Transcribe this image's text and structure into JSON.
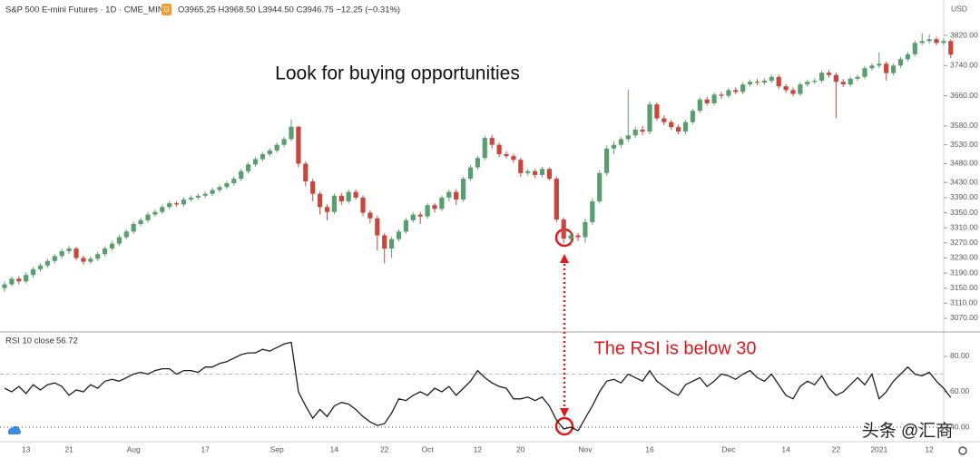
{
  "chart_data": [
    {
      "type": "candlestick",
      "title": "S&P 500 E-mini Futures · 1D · CME_MINI",
      "interval_badge": "D",
      "ohlc_legend": "O3965.25 H3968.50 L3944.50 C3946.75 −12.25 (−0.31%)",
      "currency": "USD",
      "annotation": "Look for buying opportunities",
      "up_color": "#5a9e6f",
      "down_color": "#c8473d",
      "ylim": [
        3036.3,
        3913.8
      ],
      "yticks": [
        {
          "value": 3820,
          "label": "3820.00"
        },
        {
          "value": 3740,
          "label": "3740.00"
        },
        {
          "value": 3660,
          "label": "3660.00"
        },
        {
          "value": 3580,
          "label": "3580.00"
        },
        {
          "value": 3530,
          "label": "3530.00"
        },
        {
          "value": 3480,
          "label": "3480.00"
        },
        {
          "value": 3430,
          "label": "3430.00"
        },
        {
          "value": 3390,
          "label": "3390.00"
        },
        {
          "value": 3350,
          "label": "3350.00"
        },
        {
          "value": 3310,
          "label": "3310.00"
        },
        {
          "value": 3270,
          "label": "3270.00"
        },
        {
          "value": 3230,
          "label": "3230.00"
        },
        {
          "value": 3190,
          "label": "3190.00"
        },
        {
          "value": 3150,
          "label": "3150.00"
        },
        {
          "value": 3110,
          "label": "3110.00"
        },
        {
          "value": 3070,
          "label": "3070.00"
        }
      ],
      "candles": [
        [
          3150,
          3168,
          3140,
          3160
        ],
        [
          3160,
          3181,
          3154,
          3175
        ],
        [
          3175,
          3182,
          3160,
          3168
        ],
        [
          3168,
          3192,
          3162,
          3185
        ],
        [
          3185,
          3206,
          3178,
          3200
        ],
        [
          3200,
          3216,
          3194,
          3210
        ],
        [
          3210,
          3228,
          3204,
          3222
        ],
        [
          3222,
          3241,
          3215,
          3235
        ],
        [
          3235,
          3254,
          3229,
          3248
        ],
        [
          3248,
          3262,
          3240,
          3255
        ],
        [
          3255,
          3260,
          3224,
          3230
        ],
        [
          3230,
          3236,
          3212,
          3220
        ],
        [
          3220,
          3234,
          3214,
          3228
        ],
        [
          3228,
          3246,
          3222,
          3240
        ],
        [
          3240,
          3261,
          3234,
          3255
        ],
        [
          3255,
          3274,
          3249,
          3268
        ],
        [
          3268,
          3291,
          3262,
          3285
        ],
        [
          3285,
          3306,
          3279,
          3300
        ],
        [
          3300,
          3326,
          3294,
          3320
        ],
        [
          3320,
          3336,
          3314,
          3330
        ],
        [
          3330,
          3351,
          3324,
          3345
        ],
        [
          3345,
          3358,
          3339,
          3352
        ],
        [
          3352,
          3371,
          3346,
          3365
        ],
        [
          3365,
          3381,
          3359,
          3375
        ],
        [
          3375,
          3380,
          3366,
          3372
        ],
        [
          3372,
          3391,
          3366,
          3385
        ],
        [
          3385,
          3396,
          3379,
          3390
        ],
        [
          3390,
          3401,
          3384,
          3395
        ],
        [
          3395,
          3406,
          3389,
          3400
        ],
        [
          3400,
          3416,
          3394,
          3410
        ],
        [
          3410,
          3424,
          3404,
          3418
        ],
        [
          3418,
          3434,
          3412,
          3428
        ],
        [
          3428,
          3446,
          3422,
          3440
        ],
        [
          3440,
          3466,
          3434,
          3460
        ],
        [
          3460,
          3484,
          3454,
          3478
        ],
        [
          3478,
          3498,
          3472,
          3492
        ],
        [
          3492,
          3511,
          3486,
          3505
        ],
        [
          3505,
          3521,
          3499,
          3515
        ],
        [
          3515,
          3536,
          3509,
          3530
        ],
        [
          3530,
          3551,
          3524,
          3545
        ],
        [
          3545,
          3597,
          3540,
          3578
        ],
        [
          3578,
          3580,
          3470,
          3480
        ],
        [
          3480,
          3486,
          3420,
          3433
        ],
        [
          3433,
          3440,
          3380,
          3400
        ],
        [
          3400,
          3406,
          3345,
          3365
        ],
        [
          3365,
          3372,
          3330,
          3352
        ],
        [
          3352,
          3401,
          3346,
          3395
        ],
        [
          3395,
          3402,
          3370,
          3380
        ],
        [
          3380,
          3411,
          3374,
          3405
        ],
        [
          3405,
          3412,
          3384,
          3390
        ],
        [
          3390,
          3396,
          3340,
          3350
        ],
        [
          3350,
          3356,
          3322,
          3335
        ],
        [
          3335,
          3342,
          3250,
          3290
        ],
        [
          3290,
          3296,
          3215,
          3255
        ],
        [
          3255,
          3286,
          3230,
          3280
        ],
        [
          3280,
          3306,
          3274,
          3300
        ],
        [
          3300,
          3336,
          3294,
          3330
        ],
        [
          3330,
          3351,
          3324,
          3345
        ],
        [
          3345,
          3352,
          3320,
          3340
        ],
        [
          3340,
          3376,
          3334,
          3370
        ],
        [
          3370,
          3376,
          3350,
          3360
        ],
        [
          3360,
          3396,
          3354,
          3390
        ],
        [
          3390,
          3411,
          3380,
          3405
        ],
        [
          3405,
          3412,
          3370,
          3385
        ],
        [
          3385,
          3446,
          3379,
          3440
        ],
        [
          3440,
          3476,
          3434,
          3470
        ],
        [
          3470,
          3501,
          3464,
          3495
        ],
        [
          3495,
          3554,
          3489,
          3548
        ],
        [
          3548,
          3556,
          3520,
          3530
        ],
        [
          3530,
          3536,
          3498,
          3505
        ],
        [
          3505,
          3512,
          3494,
          3500
        ],
        [
          3500,
          3506,
          3482,
          3490
        ],
        [
          3490,
          3496,
          3445,
          3455
        ],
        [
          3455,
          3466,
          3448,
          3460
        ],
        [
          3460,
          3466,
          3442,
          3450
        ],
        [
          3450,
          3472,
          3444,
          3466
        ],
        [
          3466,
          3470,
          3435,
          3440
        ],
        [
          3440,
          3446,
          3325,
          3332
        ],
        [
          3332,
          3338,
          3270,
          3281
        ],
        [
          3281,
          3300,
          3262,
          3290
        ],
        [
          3290,
          3296,
          3275,
          3285
        ],
        [
          3285,
          3335,
          3270,
          3325
        ],
        [
          3325,
          3388,
          3318,
          3380
        ],
        [
          3380,
          3462,
          3374,
          3455
        ],
        [
          3455,
          3528,
          3448,
          3520
        ],
        [
          3520,
          3540,
          3505,
          3530
        ],
        [
          3530,
          3551,
          3522,
          3545
        ],
        [
          3545,
          3676,
          3538,
          3555
        ],
        [
          3555,
          3578,
          3548,
          3570
        ],
        [
          3570,
          3580,
          3556,
          3565
        ],
        [
          3565,
          3645,
          3558,
          3637
        ],
        [
          3637,
          3642,
          3594,
          3600
        ],
        [
          3600,
          3608,
          3582,
          3590
        ],
        [
          3590,
          3596,
          3570,
          3577
        ],
        [
          3577,
          3584,
          3558,
          3565
        ],
        [
          3565,
          3596,
          3558,
          3590
        ],
        [
          3590,
          3626,
          3584,
          3620
        ],
        [
          3620,
          3656,
          3614,
          3650
        ],
        [
          3650,
          3657,
          3634,
          3640
        ],
        [
          3640,
          3669,
          3634,
          3663
        ],
        [
          3663,
          3670,
          3652,
          3660
        ],
        [
          3660,
          3681,
          3654,
          3675
        ],
        [
          3675,
          3682,
          3664,
          3670
        ],
        [
          3670,
          3696,
          3664,
          3690
        ],
        [
          3690,
          3703,
          3684,
          3697
        ],
        [
          3697,
          3704,
          3688,
          3695
        ],
        [
          3695,
          3706,
          3689,
          3700
        ],
        [
          3700,
          3716,
          3694,
          3710
        ],
        [
          3710,
          3716,
          3678,
          3685
        ],
        [
          3685,
          3691,
          3668,
          3675
        ],
        [
          3675,
          3682,
          3658,
          3665
        ],
        [
          3665,
          3696,
          3659,
          3690
        ],
        [
          3690,
          3703,
          3684,
          3697
        ],
        [
          3697,
          3706,
          3691,
          3700
        ],
        [
          3700,
          3727,
          3694,
          3721
        ],
        [
          3721,
          3728,
          3708,
          3715
        ],
        [
          3715,
          3722,
          3600,
          3697
        ],
        [
          3697,
          3704,
          3683,
          3690
        ],
        [
          3690,
          3711,
          3684,
          3705
        ],
        [
          3705,
          3716,
          3699,
          3710
        ],
        [
          3710,
          3739,
          3704,
          3733
        ],
        [
          3733,
          3746,
          3727,
          3740
        ],
        [
          3740,
          3775,
          3734,
          3745
        ],
        [
          3745,
          3751,
          3700,
          3720
        ],
        [
          3720,
          3746,
          3714,
          3740
        ],
        [
          3740,
          3763,
          3734,
          3757
        ],
        [
          3757,
          3776,
          3751,
          3770
        ],
        [
          3770,
          3806,
          3764,
          3800
        ],
        [
          3800,
          3826,
          3794,
          3805
        ],
        [
          3805,
          3823,
          3798,
          3810
        ],
        [
          3810,
          3816,
          3794,
          3800
        ],
        [
          3800,
          3812,
          3794,
          3805
        ],
        [
          3805,
          3810,
          3760,
          3769
        ]
      ]
    },
    {
      "type": "line",
      "title": "RSI 10 close",
      "color": "#1e1e1e",
      "annotation": "The RSI is below 30",
      "watermark": "头条 @汇商",
      "ylim": [
        31.8,
        92.8
      ],
      "yticks": [
        {
          "value": 80,
          "label": "80.00"
        },
        {
          "value": 60,
          "label": "60.00"
        },
        {
          "value": 40,
          "label": "40.00"
        }
      ],
      "levels": [
        70,
        40
      ],
      "categories": [
        null,
        null,
        null,
        "13",
        null,
        null,
        null,
        null,
        null,
        "21",
        null,
        null,
        null,
        null,
        null,
        null,
        null,
        null,
        "Aug",
        null,
        null,
        null,
        null,
        null,
        null,
        null,
        null,
        null,
        "17",
        null,
        null,
        null,
        null,
        null,
        null,
        null,
        null,
        null,
        "Sep",
        null,
        null,
        null,
        null,
        null,
        null,
        null,
        "14",
        null,
        null,
        null,
        null,
        null,
        null,
        "22",
        null,
        null,
        null,
        null,
        null,
        "Oct",
        null,
        null,
        null,
        null,
        null,
        null,
        "12",
        null,
        null,
        null,
        null,
        null,
        "20",
        null,
        null,
        null,
        null,
        null,
        null,
        null,
        null,
        "Nov",
        null,
        null,
        null,
        null,
        null,
        null,
        null,
        null,
        "16",
        null,
        null,
        null,
        null,
        null,
        null,
        null,
        null,
        null,
        null,
        "Dec",
        null,
        null,
        null,
        null,
        null,
        null,
        null,
        "14",
        null,
        null,
        null,
        null,
        null,
        null,
        "22",
        null,
        null,
        null,
        null,
        null,
        "2021",
        null,
        null,
        null,
        null,
        null,
        null,
        "12",
        null,
        null,
        null
      ],
      "values": [
        62,
        60,
        63,
        59,
        64,
        61,
        64,
        65,
        63,
        58,
        61,
        60,
        64,
        62,
        66,
        67,
        66,
        68,
        70,
        71,
        70,
        72,
        73,
        73,
        70,
        72,
        72,
        71,
        74,
        74,
        76,
        77,
        79,
        81,
        82,
        82,
        84,
        83,
        85,
        87,
        88,
        60,
        52,
        45,
        50,
        46,
        52,
        54,
        53,
        50,
        46,
        43,
        41,
        42,
        48,
        56,
        55,
        58,
        60,
        58,
        62,
        60,
        63,
        58,
        62,
        66,
        72,
        68,
        65,
        63,
        62,
        56,
        56,
        57,
        55,
        57,
        52,
        44,
        39,
        40,
        38,
        45,
        52,
        60,
        66,
        67,
        65,
        70,
        68,
        66,
        72,
        66,
        63,
        60,
        58,
        64,
        66,
        68,
        63,
        66,
        70,
        69,
        67,
        70,
        72,
        68,
        66,
        70,
        64,
        58,
        56,
        63,
        66,
        64,
        69,
        62,
        58,
        60,
        64,
        68,
        64,
        70,
        56,
        60,
        66,
        70,
        74,
        70,
        69,
        71,
        66,
        62,
        56.72
      ]
    }
  ]
}
